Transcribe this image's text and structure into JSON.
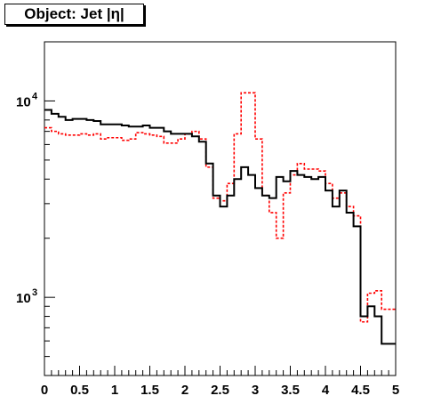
{
  "chart_data": {
    "type": "line",
    "title": "Object: Jet |η|",
    "xlabel": "",
    "ylabel": "",
    "xlim": [
      0,
      5
    ],
    "ylim": [
      400,
      20000
    ],
    "yscale": "log",
    "grid": false,
    "x_ticks": [
      "0",
      "0.5",
      "1",
      "1.5",
      "2",
      "2.5",
      "3",
      "3.5",
      "4",
      "4.5",
      "5"
    ],
    "y_ticks": [
      {
        "value": 1000,
        "base": "10",
        "exp": "3"
      },
      {
        "value": 10000,
        "base": "10",
        "exp": "4"
      }
    ],
    "bin_edges": [
      0,
      0.1,
      0.2,
      0.3,
      0.4,
      0.5,
      0.6,
      0.7,
      0.8,
      0.9,
      1.0,
      1.1,
      1.2,
      1.3,
      1.4,
      1.5,
      1.6,
      1.7,
      1.8,
      1.9,
      2.0,
      2.1,
      2.2,
      2.3,
      2.4,
      2.5,
      2.6,
      2.7,
      2.8,
      2.9,
      3.0,
      3.1,
      3.2,
      3.3,
      3.4,
      3.5,
      3.6,
      3.7,
      3.8,
      3.9,
      4.0,
      4.1,
      4.2,
      4.3,
      4.4,
      4.5,
      4.6,
      4.7,
      4.8,
      4.9,
      5.0
    ],
    "series": [
      {
        "style": "solid",
        "color": "#000000",
        "values": [
          9000,
          8600,
          8300,
          8000,
          8100,
          8100,
          8000,
          7900,
          7600,
          7600,
          7600,
          7500,
          7400,
          7400,
          7500,
          7300,
          7300,
          7000,
          6800,
          6800,
          6800,
          6600,
          6200,
          4800,
          3300,
          2900,
          3300,
          4000,
          4600,
          4200,
          3600,
          3300,
          3200,
          4100,
          3900,
          4400,
          4200,
          4100,
          4000,
          4100,
          3500,
          2900,
          3500,
          2700,
          2300,
          800,
          900,
          800,
          580,
          580
        ]
      },
      {
        "style": "dashed",
        "color": "#ff0000",
        "values": [
          7300,
          7000,
          6800,
          6700,
          6700,
          6800,
          6700,
          6800,
          6400,
          6500,
          6500,
          6300,
          6400,
          6900,
          6800,
          6700,
          6600,
          6100,
          6100,
          6400,
          6800,
          7000,
          6400,
          4600,
          3200,
          3100,
          3800,
          6800,
          11000,
          11000,
          6400,
          3300,
          2700,
          2000,
          3400,
          4200,
          4800,
          4500,
          4500,
          4400,
          3800,
          3200,
          3400,
          2900,
          2600,
          750,
          1050,
          1080,
          870,
          870
        ]
      }
    ]
  }
}
